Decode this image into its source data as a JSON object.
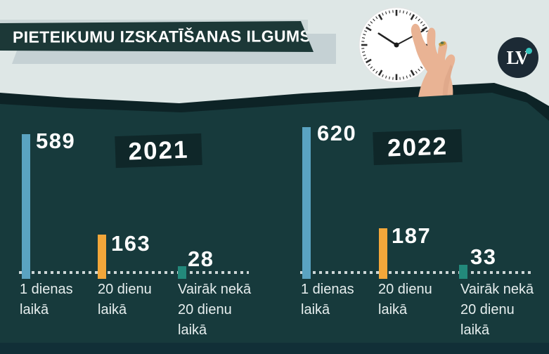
{
  "title": "PIETEIKUMU IZSKATĪŠANAS ILGUMS",
  "logo": {
    "text": "LV"
  },
  "illustrations": [
    "wall-clock",
    "hand-adjusting-clock"
  ],
  "chart_data": [
    {
      "type": "bar",
      "title": "2021",
      "categories": [
        "1 dienas laikā",
        "20 dienu laikā",
        "Vairāk nekā 20 dienu laikā"
      ],
      "values": [
        589,
        163,
        28
      ],
      "colors": [
        "#5aa3c1",
        "#f3a73a",
        "#23897b"
      ],
      "baseline": "dotted",
      "ylim": [
        0,
        620
      ],
      "grid": "off",
      "legend": "none"
    },
    {
      "type": "bar",
      "title": "2022",
      "categories": [
        "1 dienas laikā",
        "20 dienu laikā",
        "Vairāk nekā 20 dienu laikā"
      ],
      "values": [
        620,
        187,
        33
      ],
      "colors": [
        "#5aa3c1",
        "#f3a73a",
        "#23897b"
      ],
      "baseline": "dotted",
      "ylim": [
        0,
        620
      ],
      "grid": "off",
      "legend": "none"
    }
  ],
  "colors": {
    "background_top": "#dee7e6",
    "background_dark": "#173a3c",
    "background_edge": "#0d2326",
    "background_bottom_strip": "#112f37",
    "banner": "#1c3837",
    "year_box": "#0f2729",
    "accent_blue": "#5aa3c1",
    "accent_orange": "#f3a73a",
    "accent_teal": "#23897b",
    "logo_circle": "#1c2a35",
    "logo_dot": "#35c4bd",
    "dotted_line": "#ccd6d6"
  }
}
